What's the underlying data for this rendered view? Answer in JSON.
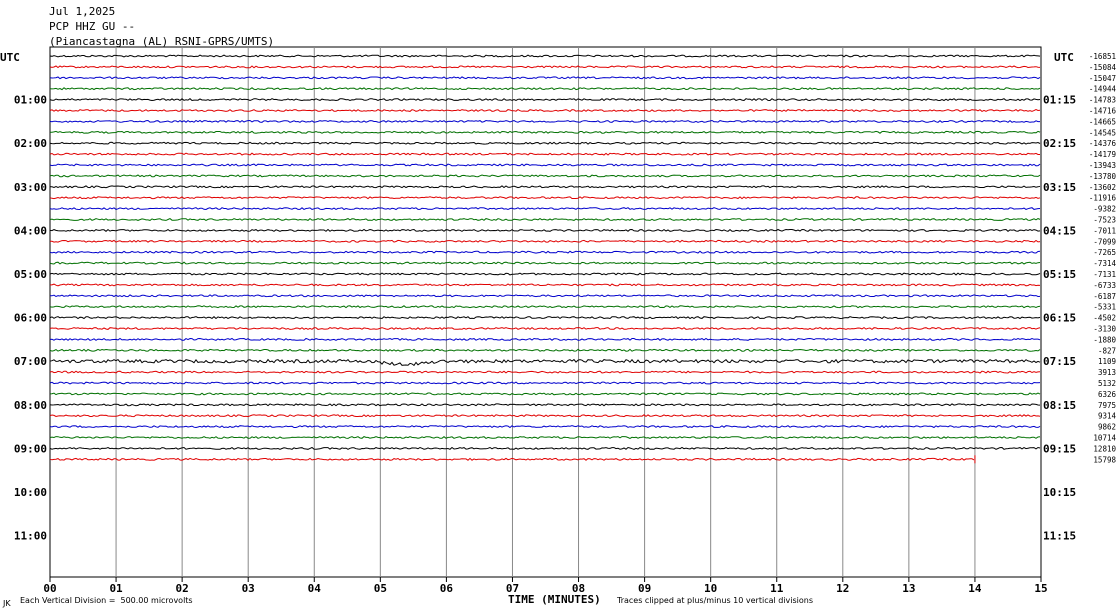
{
  "header": {
    "date": "Jul 1,2025",
    "station": "PCP HHZ GU --",
    "location": "(Piancastagna (AL) RSNI-GPRS/UMTS)"
  },
  "chart_data": {
    "type": "line",
    "title": "",
    "xlabel": "TIME (MINUTES)",
    "x_ticks": [
      "00",
      "01",
      "02",
      "03",
      "04",
      "05",
      "06",
      "07",
      "08",
      "09",
      "10",
      "11",
      "12",
      "13",
      "14",
      "15"
    ],
    "xlim": [
      0,
      15
    ],
    "left_axis_label": "UTC",
    "right_axis_label": "UTC",
    "left_hour_labels": [
      "01:00",
      "02:00",
      "03:00",
      "04:00",
      "05:00",
      "06:00",
      "07:00",
      "08:00",
      "09:00",
      "10:00",
      "11:00"
    ],
    "right_hour_labels": [
      "01:15",
      "02:15",
      "03:15",
      "04:15",
      "05:15",
      "06:15",
      "07:15",
      "08:15",
      "09:15",
      "10:15",
      "11:15"
    ],
    "trace_colors": [
      "#000000",
      "#e00000",
      "#0000cc",
      "#007000"
    ],
    "trace_offsets": [
      "-16851",
      "-15084",
      "-15047",
      "-14944",
      "-14783",
      "-14716",
      "-14665",
      "-14545",
      "-14376",
      "-14179",
      "-13943",
      "-13780",
      "-13602",
      "-11916",
      "-9382",
      "-7523",
      "-7011",
      "-7099",
      "-7265",
      "-7314",
      "-7131",
      "-6733",
      "-6187",
      "-5331",
      "-4502",
      "-3130",
      "-1880",
      "-827",
      "1109",
      "3913",
      "5132",
      "6326",
      "7975",
      "9314",
      "9862",
      "10714",
      "12810",
      "15798"
    ],
    "last_trace_end_minute": 14.0,
    "footer_left": "Each Vertical Division =  500.00 microvolts",
    "footer_right": "Traces clipped at plus/minus 10 vertical divisions",
    "footer_mark": "JK"
  }
}
